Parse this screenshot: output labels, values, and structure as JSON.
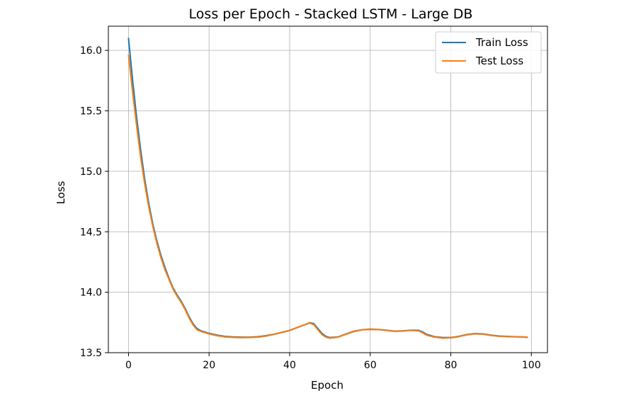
{
  "chart_data": {
    "type": "line",
    "title": "Loss per Epoch - Stacked LSTM - Large DB",
    "xlabel": "Epoch",
    "ylabel": "Loss",
    "xlim": [
      -5,
      104
    ],
    "ylim": [
      13.5,
      16.2
    ],
    "xticks": [
      0,
      20,
      40,
      60,
      80,
      100
    ],
    "xtick_labels": [
      "0",
      "20",
      "40",
      "60",
      "80",
      "100"
    ],
    "yticks": [
      13.5,
      14.0,
      14.5,
      15.0,
      15.5,
      16.0
    ],
    "ytick_labels": [
      "13.5",
      "14.0",
      "14.5",
      "15.0",
      "15.5",
      "16.0"
    ],
    "grid": true,
    "legend_position": "top-right",
    "series": [
      {
        "name": "Train Loss",
        "color": "#1f77b4",
        "x": [
          0,
          1,
          2,
          3,
          4,
          5,
          6,
          7,
          8,
          9,
          10,
          11,
          12,
          13,
          14,
          15,
          16,
          17,
          18,
          19,
          20,
          22,
          24,
          26,
          28,
          30,
          32,
          34,
          36,
          38,
          40,
          42,
          44,
          45,
          46,
          47,
          48,
          49,
          50,
          52,
          54,
          56,
          58,
          60,
          62,
          64,
          66,
          68,
          70,
          72,
          73,
          74,
          76,
          78,
          80,
          82,
          84,
          86,
          88,
          90,
          92,
          94,
          96,
          98,
          99
        ],
        "values": [
          16.1,
          15.76,
          15.45,
          15.18,
          14.94,
          14.74,
          14.57,
          14.43,
          14.31,
          14.21,
          14.12,
          14.04,
          13.98,
          13.93,
          13.87,
          13.8,
          13.74,
          13.7,
          13.68,
          13.67,
          13.66,
          13.645,
          13.635,
          13.63,
          13.628,
          13.628,
          13.632,
          13.64,
          13.652,
          13.668,
          13.685,
          13.71,
          13.735,
          13.748,
          13.74,
          13.7,
          13.66,
          13.635,
          13.625,
          13.63,
          13.655,
          13.678,
          13.69,
          13.695,
          13.692,
          13.686,
          13.678,
          13.68,
          13.685,
          13.685,
          13.672,
          13.652,
          13.632,
          13.625,
          13.625,
          13.635,
          13.65,
          13.658,
          13.655,
          13.645,
          13.638,
          13.635,
          13.632,
          13.63,
          13.628
        ]
      },
      {
        "name": "Test Loss",
        "color": "#ff7f0e",
        "x": [
          0,
          1,
          2,
          3,
          4,
          5,
          6,
          7,
          8,
          9,
          10,
          11,
          12,
          13,
          14,
          15,
          16,
          17,
          18,
          19,
          20,
          22,
          24,
          26,
          28,
          30,
          32,
          34,
          36,
          38,
          40,
          42,
          44,
          45,
          46,
          47,
          48,
          49,
          50,
          52,
          54,
          56,
          58,
          60,
          62,
          64,
          66,
          68,
          70,
          72,
          73,
          74,
          76,
          78,
          80,
          82,
          84,
          86,
          88,
          90,
          92,
          94,
          96,
          98,
          99
        ],
        "values": [
          15.96,
          15.66,
          15.38,
          15.12,
          14.9,
          14.71,
          14.55,
          14.41,
          14.29,
          14.19,
          14.11,
          14.03,
          13.97,
          13.92,
          13.86,
          13.79,
          13.73,
          13.69,
          13.675,
          13.665,
          13.655,
          13.64,
          13.63,
          13.626,
          13.624,
          13.625,
          13.628,
          13.636,
          13.65,
          13.666,
          13.683,
          13.708,
          13.733,
          13.745,
          13.732,
          13.69,
          13.65,
          13.628,
          13.62,
          13.628,
          13.652,
          13.675,
          13.688,
          13.692,
          13.69,
          13.684,
          13.676,
          13.678,
          13.683,
          13.68,
          13.665,
          13.645,
          13.628,
          13.62,
          13.622,
          13.632,
          13.647,
          13.655,
          13.652,
          13.642,
          13.635,
          13.632,
          13.63,
          13.628,
          13.626
        ]
      }
    ]
  }
}
